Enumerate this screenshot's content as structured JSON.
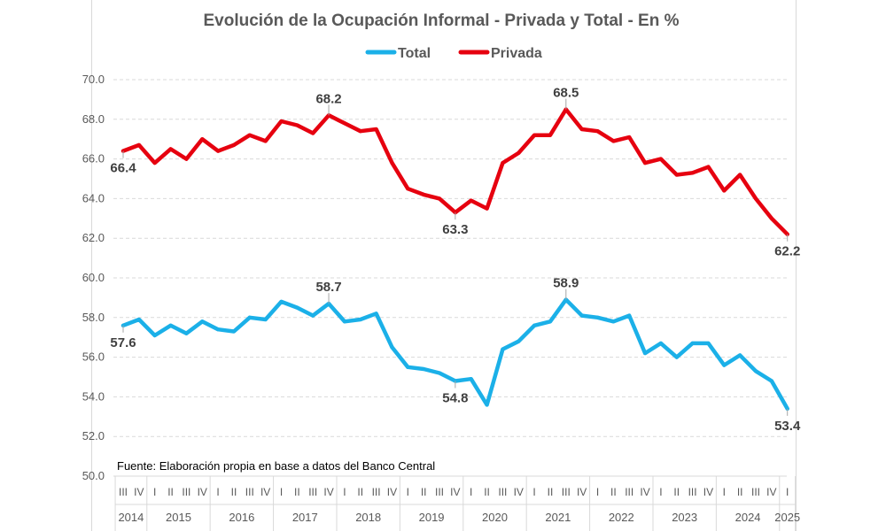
{
  "chart_data": {
    "type": "line",
    "title": "Evolución de la Ocupación Informal - Privada y Total - En %",
    "note": "Fuente: Elaboración propia en base a datos del Banco Central",
    "ylim": [
      50,
      70
    ],
    "yticks": [
      "50.0",
      "52.0",
      "54.0",
      "56.0",
      "58.0",
      "60.0",
      "62.0",
      "64.0",
      "66.0",
      "68.0",
      "70.0"
    ],
    "grid": true,
    "legend_position": "top-center",
    "x": [
      "2014-III",
      "2014-IV",
      "2015-I",
      "2015-II",
      "2015-III",
      "2015-IV",
      "2016-I",
      "2016-II",
      "2016-III",
      "2016-IV",
      "2017-I",
      "2017-II",
      "2017-III",
      "2017-IV",
      "2018-I",
      "2018-II",
      "2018-III",
      "2018-IV",
      "2019-I",
      "2019-II",
      "2019-III",
      "2019-IV",
      "2020-I",
      "2020-II",
      "2020-III",
      "2020-IV",
      "2021-I",
      "2021-II",
      "2021-III",
      "2021-IV",
      "2022-I",
      "2022-II",
      "2022-III",
      "2022-IV",
      "2023-I",
      "2023-II",
      "2023-III",
      "2023-IV",
      "2024-I",
      "2024-II",
      "2024-III",
      "2024-IV",
      "2025-I"
    ],
    "quarter_labels": [
      "III",
      "IV",
      "I",
      "II",
      "III",
      "IV",
      "I",
      "II",
      "III",
      "IV",
      "I",
      "II",
      "III",
      "IV",
      "I",
      "II",
      "III",
      "IV",
      "I",
      "II",
      "III",
      "IV",
      "I",
      "II",
      "III",
      "IV",
      "I",
      "II",
      "III",
      "IV",
      "I",
      "II",
      "III",
      "IV",
      "I",
      "II",
      "III",
      "IV",
      "I",
      "II",
      "III",
      "IV",
      "I"
    ],
    "years": [
      {
        "label": "2014",
        "start": 0,
        "end": 1
      },
      {
        "label": "2015",
        "start": 2,
        "end": 5
      },
      {
        "label": "2016",
        "start": 6,
        "end": 9
      },
      {
        "label": "2017",
        "start": 10,
        "end": 13
      },
      {
        "label": "2018",
        "start": 14,
        "end": 17
      },
      {
        "label": "2019",
        "start": 18,
        "end": 21
      },
      {
        "label": "2020",
        "start": 22,
        "end": 25
      },
      {
        "label": "2021",
        "start": 26,
        "end": 29
      },
      {
        "label": "2022",
        "start": 30,
        "end": 33
      },
      {
        "label": "2023",
        "start": 34,
        "end": 37
      },
      {
        "label": "2024",
        "start": 38,
        "end": 41
      },
      {
        "label": "2025",
        "start": 42,
        "end": 42
      }
    ],
    "series": [
      {
        "name": "Total",
        "color": "#1bb0e8",
        "values": [
          57.6,
          57.9,
          57.1,
          57.6,
          57.2,
          57.8,
          57.4,
          57.3,
          58.0,
          57.9,
          58.8,
          58.5,
          58.1,
          58.7,
          57.8,
          57.9,
          58.2,
          56.5,
          55.5,
          55.4,
          55.2,
          54.8,
          54.9,
          53.6,
          56.4,
          56.8,
          57.6,
          57.8,
          58.9,
          58.1,
          58.0,
          57.8,
          58.1,
          56.2,
          56.7,
          56.0,
          56.7,
          56.7,
          55.6,
          56.1,
          55.3,
          54.8,
          53.4
        ],
        "labels": [
          {
            "index": 0,
            "text": "57.6",
            "pos": "below"
          },
          {
            "index": 13,
            "text": "58.7",
            "pos": "above"
          },
          {
            "index": 21,
            "text": "54.8",
            "pos": "below"
          },
          {
            "index": 28,
            "text": "58.9",
            "pos": "above"
          },
          {
            "index": 42,
            "text": "53.4",
            "pos": "below"
          }
        ]
      },
      {
        "name": "Privada",
        "color": "#e6000f",
        "values": [
          66.4,
          66.7,
          65.8,
          66.5,
          66.0,
          67.0,
          66.4,
          66.7,
          67.2,
          66.9,
          67.9,
          67.7,
          67.3,
          68.2,
          67.8,
          67.4,
          67.5,
          65.8,
          64.5,
          64.2,
          64.0,
          63.3,
          63.9,
          63.5,
          65.8,
          66.3,
          67.2,
          67.2,
          68.5,
          67.5,
          67.4,
          66.9,
          67.1,
          65.8,
          66.0,
          65.2,
          65.3,
          65.6,
          64.4,
          65.2,
          64.0,
          63.0,
          62.2
        ],
        "labels": [
          {
            "index": 0,
            "text": "66.4",
            "pos": "below"
          },
          {
            "index": 13,
            "text": "68.2",
            "pos": "above"
          },
          {
            "index": 21,
            "text": "63.3",
            "pos": "below"
          },
          {
            "index": 28,
            "text": "68.5",
            "pos": "above"
          },
          {
            "index": 42,
            "text": "62.2",
            "pos": "below"
          }
        ]
      }
    ]
  }
}
